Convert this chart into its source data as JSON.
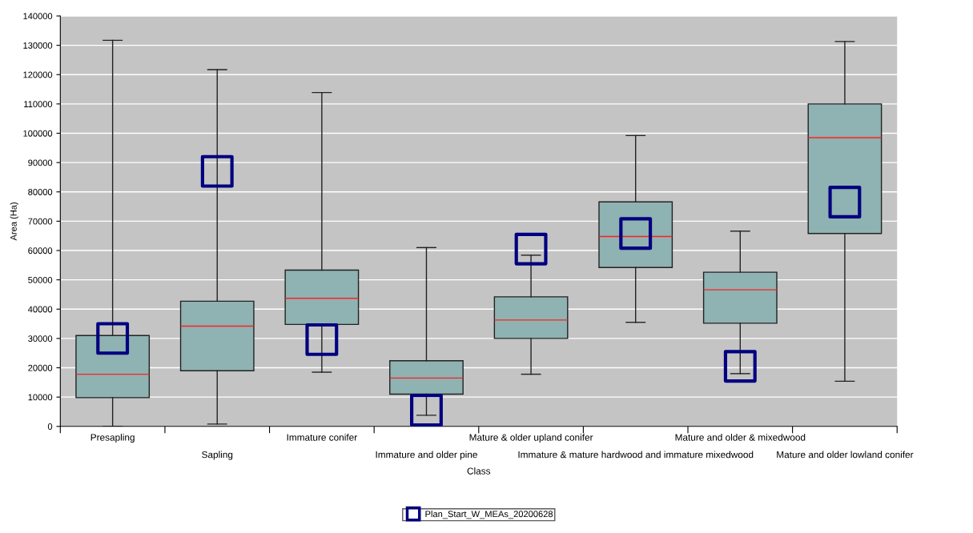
{
  "chart_data": {
    "type": "box",
    "xlabel": "Class",
    "ylabel": "Area (Ha)",
    "categories": [
      "Presapling",
      "Sapling",
      "Immature conifer",
      "Immature and older pine",
      "Mature & older upland conifer",
      "Immature & mature hardwood and immature mixedwood",
      "Mature and older & mixedwood",
      "Mature and older lowland conifer"
    ],
    "boxes": [
      {
        "low": 0,
        "q1": 9800,
        "median": 17800,
        "q3": 31000,
        "high": 131700
      },
      {
        "low": 800,
        "q1": 19000,
        "median": 34200,
        "q3": 42700,
        "high": 121700
      },
      {
        "low": 18500,
        "q1": 34800,
        "median": 43700,
        "q3": 53300,
        "high": 113900
      },
      {
        "low": 3800,
        "q1": 11000,
        "median": 16500,
        "q3": 22400,
        "high": 61000
      },
      {
        "low": 17800,
        "q1": 30000,
        "median": 36300,
        "q3": 44200,
        "high": 58400
      },
      {
        "low": 35500,
        "q1": 54200,
        "median": 64800,
        "q3": 76600,
        "high": 99200
      },
      {
        "low": 18000,
        "q1": 35200,
        "median": 46600,
        "q3": 52600,
        "high": 66600
      },
      {
        "low": 15400,
        "q1": 65800,
        "median": 98500,
        "q3": 110000,
        "high": 131300
      }
    ],
    "series": [
      {
        "type": "scatter",
        "name": "Plan_Start_W_MEAs_20200628",
        "color": "#000080",
        "x": [
          "Presapling",
          "Sapling",
          "Immature conifer",
          "Immature and older pine",
          "Mature & older upland conifer",
          "Immature & mature hardwood and immature mixedwood",
          "Mature and older & mixedwood",
          "Mature and older lowland conifer"
        ],
        "values": [
          30000,
          87000,
          29600,
          5500,
          60500,
          65800,
          20500,
          76500
        ]
      }
    ],
    "marker": "square",
    "ylim": [
      0,
      140000
    ],
    "yticks": [
      0,
      10000,
      20000,
      30000,
      40000,
      50000,
      60000,
      70000,
      80000,
      90000,
      100000,
      110000,
      120000,
      130000,
      140000
    ],
    "grid": "y",
    "legend": "bottom"
  }
}
